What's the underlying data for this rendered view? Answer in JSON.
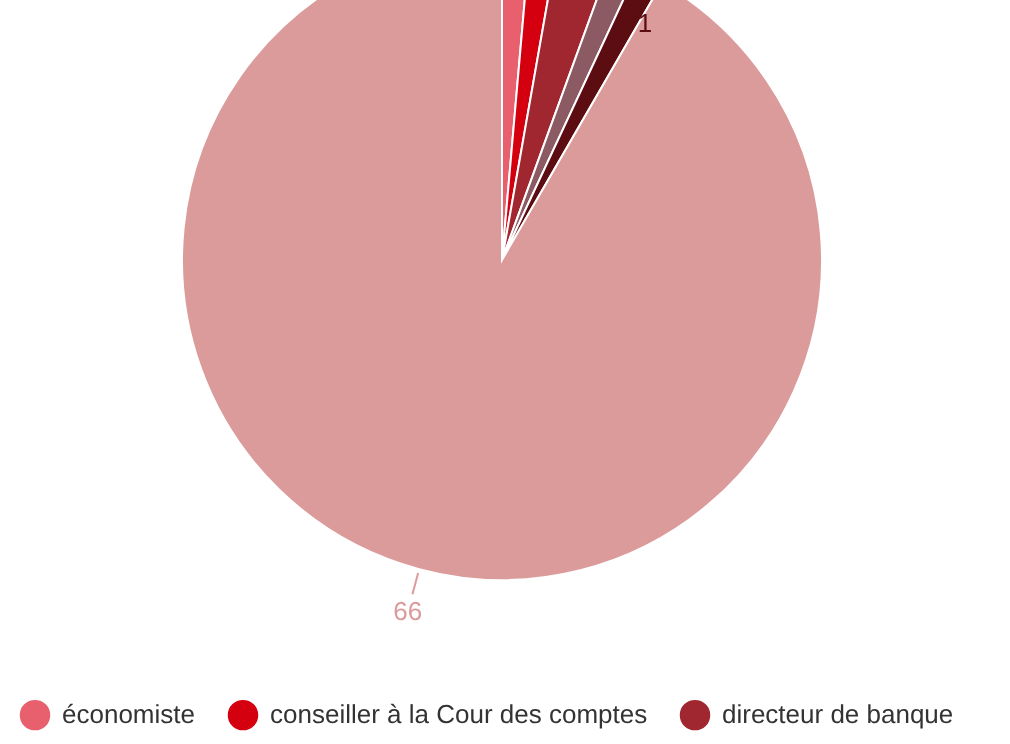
{
  "chart_data": {
    "type": "pie",
    "categories": [
      "économiste",
      "conseiller à la Cour des comptes",
      "directeur de banque",
      null,
      null,
      null
    ],
    "values": [
      1,
      1,
      2,
      1,
      1,
      66
    ],
    "colors": [
      "#e8606e",
      "#d40010",
      "#a0262f",
      "#8c5a62",
      "#5c0d12",
      "#db9b9b"
    ],
    "value_labels": [
      null,
      null,
      null,
      null,
      "1",
      "66"
    ],
    "legend": "bottom"
  }
}
